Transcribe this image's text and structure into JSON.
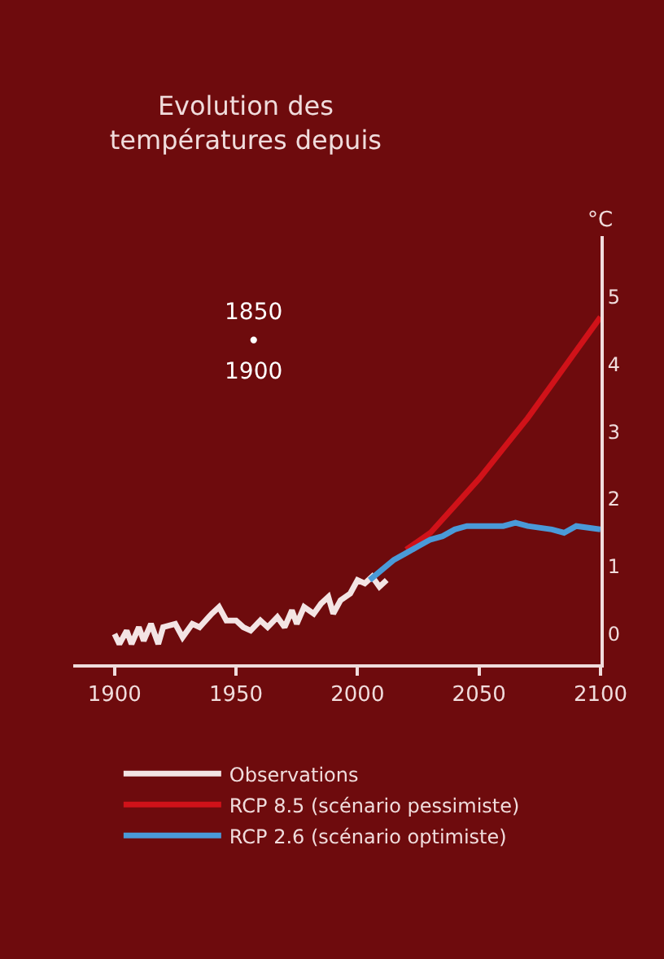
{
  "chart_data": {
    "type": "line",
    "title": "Evolution des\ntempératures depuis",
    "subtitle": "1850\n•\n1900",
    "ylabel": "°C",
    "xlim": [
      1883,
      2100
    ],
    "xticks": [
      1900,
      1950,
      2000,
      2050,
      2100
    ],
    "ylim": [
      -0.45,
      5.9
    ],
    "yticks": [
      0,
      1,
      2,
      3,
      4,
      5
    ],
    "grid": false,
    "legend": "bottom",
    "marker": "none",
    "line_style": "solid",
    "series": [
      {
        "name": "Observations",
        "color": "#f3e4e4",
        "x": [
          1900,
          1902,
          1905,
          1907,
          1910,
          1912,
          1915,
          1918,
          1920,
          1925,
          1928,
          1932,
          1935,
          1940,
          1943,
          1946,
          1950,
          1953,
          1956,
          1960,
          1963,
          1967,
          1970,
          1973,
          1975,
          1978,
          1982,
          1985,
          1988,
          1990,
          1993,
          1997,
          2000,
          2003,
          2006,
          2009,
          2012
        ],
        "values": [
          0.0,
          -0.15,
          0.05,
          -0.15,
          0.1,
          -0.1,
          0.15,
          -0.15,
          0.1,
          0.15,
          -0.05,
          0.15,
          0.1,
          0.3,
          0.4,
          0.2,
          0.2,
          0.1,
          0.05,
          0.2,
          0.1,
          0.25,
          0.1,
          0.35,
          0.15,
          0.4,
          0.3,
          0.45,
          0.55,
          0.3,
          0.5,
          0.6,
          0.8,
          0.75,
          0.85,
          0.7,
          0.8
        ]
      },
      {
        "name": "RCP 8.5 (scénario pessimiste)",
        "color": "#d01219",
        "x": [
          2020,
          2030,
          2040,
          2050,
          2060,
          2070,
          2080,
          2090,
          2100
        ],
        "values": [
          1.25,
          1.5,
          1.9,
          2.3,
          2.75,
          3.2,
          3.7,
          4.2,
          4.7
        ]
      },
      {
        "name": "RCP 2.6 (scénario optimiste)",
        "color": "#4a9ad8",
        "x": [
          2005,
          2010,
          2015,
          2020,
          2025,
          2030,
          2035,
          2040,
          2045,
          2050,
          2060,
          2065,
          2070,
          2080,
          2085,
          2090,
          2100
        ],
        "values": [
          0.8,
          0.95,
          1.1,
          1.2,
          1.3,
          1.4,
          1.45,
          1.55,
          1.6,
          1.6,
          1.6,
          1.65,
          1.6,
          1.55,
          1.5,
          1.6,
          1.55
        ]
      }
    ]
  }
}
